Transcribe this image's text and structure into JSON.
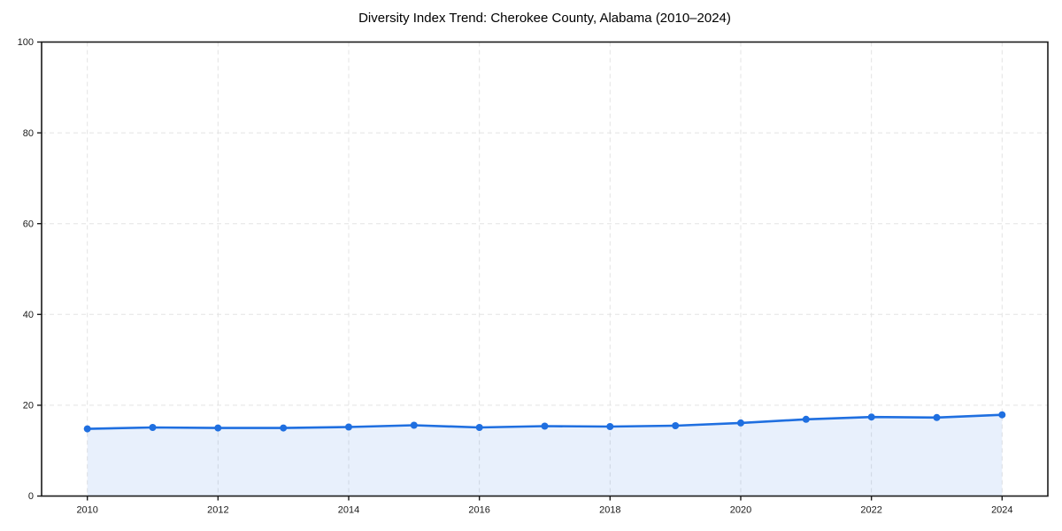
{
  "chart_data": {
    "type": "area",
    "title": "Diversity Index Trend: Cherokee County, Alabama (2010–2024)",
    "xlabel": "",
    "ylabel": "",
    "x": [
      2010,
      2011,
      2012,
      2013,
      2014,
      2015,
      2016,
      2017,
      2018,
      2019,
      2020,
      2021,
      2022,
      2023,
      2024
    ],
    "series": [
      {
        "name": "Diversity Index",
        "values": [
          14.8,
          15.1,
          15.0,
          15.0,
          15.2,
          15.6,
          15.1,
          15.4,
          15.3,
          15.5,
          16.1,
          16.9,
          17.4,
          17.3,
          17.9
        ]
      }
    ],
    "ylim": [
      0,
      100
    ],
    "xlim": [
      2009.3,
      2024.7
    ],
    "yticks": [
      0,
      20,
      40,
      60,
      80,
      100
    ],
    "xticks": [
      2010,
      2012,
      2014,
      2016,
      2018,
      2020,
      2022,
      2024
    ],
    "grid": true,
    "grid_style": "dashed",
    "legend": false,
    "colors": {
      "line": "#1f6fe0",
      "marker": "#1f6fe0",
      "fill": "#1f6fe0",
      "fill_opacity": 0.1,
      "grid": "#e3e3e3",
      "axis": "#1a1a1a",
      "tick_label": "#1a1a1a",
      "background": "#ffffff"
    }
  }
}
